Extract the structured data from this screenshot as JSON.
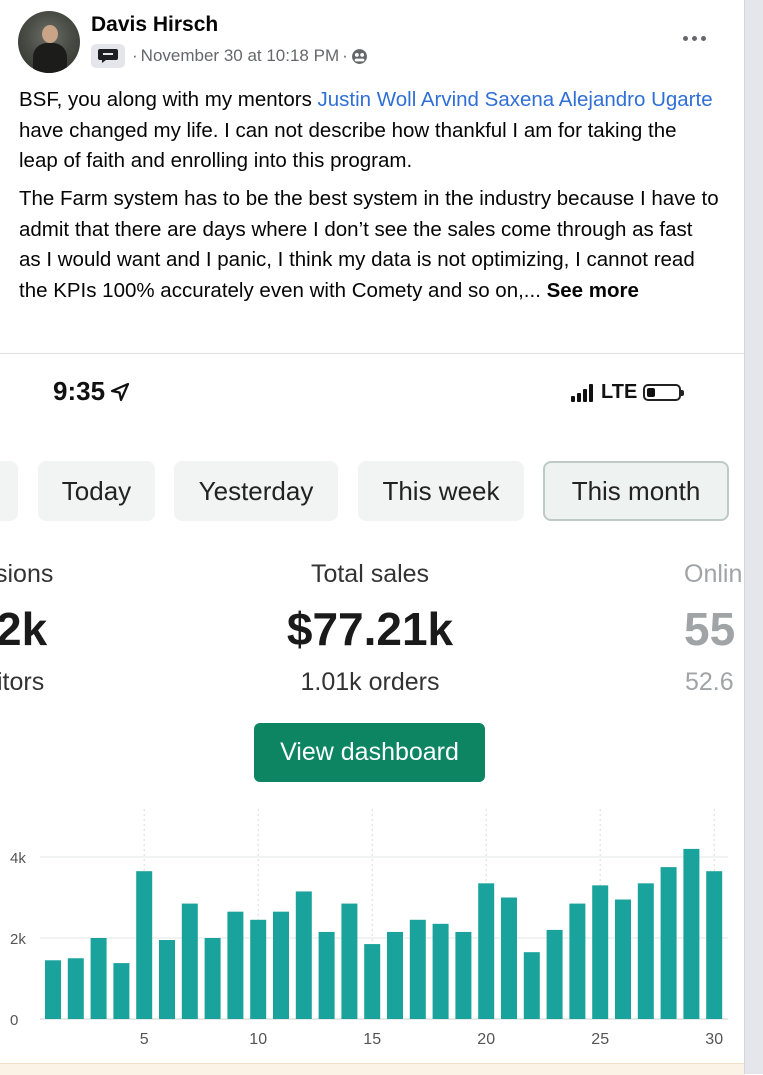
{
  "post": {
    "author": "Davis Hirsch",
    "timestamp": "November 30 at 10:18 PM",
    "separator": "·",
    "group_icon": "group-chat-icon",
    "audience_icon": "globe-icon",
    "more_icon": "more-dots-icon",
    "para1_pre": "BSF, you along with my mentors ",
    "mentions": [
      "Justin Woll",
      "Arvind Saxena",
      "Alejandro Ugarte"
    ],
    "para1_post": " have changed my life. I can not describe how thankful I am for taking the leap of faith and enrolling into this program.",
    "para2": "The Farm system has to be the best system in the industry because I have to admit that there are days where I don’t see the sales come through as fast as I would want and I panic, I think my data is not optimizing, I cannot read the KPIs 100% accurately even with Comety and so on,...",
    "see_more": "See more"
  },
  "phone": {
    "time": "9:35",
    "network": "LTE",
    "location_icon": "location-arrow-icon",
    "signal_icon": "signal-bars-icon",
    "battery_icon": "battery-icon",
    "battery_level": 0.2,
    "tabs": [
      {
        "label": "Today",
        "active": false
      },
      {
        "label": "Yesterday",
        "active": false
      },
      {
        "label": "This week",
        "active": false
      },
      {
        "label": "This month",
        "active": true
      }
    ],
    "stats": {
      "left_label": "sions",
      "left_value": "2k",
      "left_sub": "itors",
      "center_label": "Total sales",
      "center_value": "$77.21k",
      "center_sub": "1.01k orders",
      "right_label": "Onlin",
      "right_value": "55",
      "right_sub": "52.6"
    },
    "button_label": "View dashboard",
    "colors": {
      "accent": "#0d8562",
      "bar": "#1aa39c",
      "mention": "#2f6fd6"
    }
  },
  "chart_data": {
    "type": "bar",
    "x": [
      1,
      2,
      3,
      4,
      5,
      6,
      7,
      8,
      9,
      10,
      11,
      12,
      13,
      14,
      15,
      16,
      17,
      18,
      19,
      20,
      21,
      22,
      23,
      24,
      25,
      26,
      27,
      28,
      29,
      30
    ],
    "values": [
      1450,
      1500,
      2000,
      1380,
      3650,
      1950,
      2850,
      2000,
      2650,
      2450,
      2650,
      3150,
      2150,
      2850,
      1850,
      2150,
      2450,
      2350,
      2150,
      3350,
      3000,
      1650,
      2200,
      2850,
      3300,
      2950,
      3350,
      3750,
      4200,
      3650
    ],
    "x_ticks": [
      5,
      10,
      15,
      20,
      25,
      30
    ],
    "y_ticks": [
      0,
      2000,
      4000
    ],
    "y_tick_labels": [
      "0",
      "2k",
      "4k"
    ],
    "ylim": [
      0,
      4200
    ],
    "title": "",
    "xlabel": "",
    "ylabel": "",
    "grid": true
  }
}
